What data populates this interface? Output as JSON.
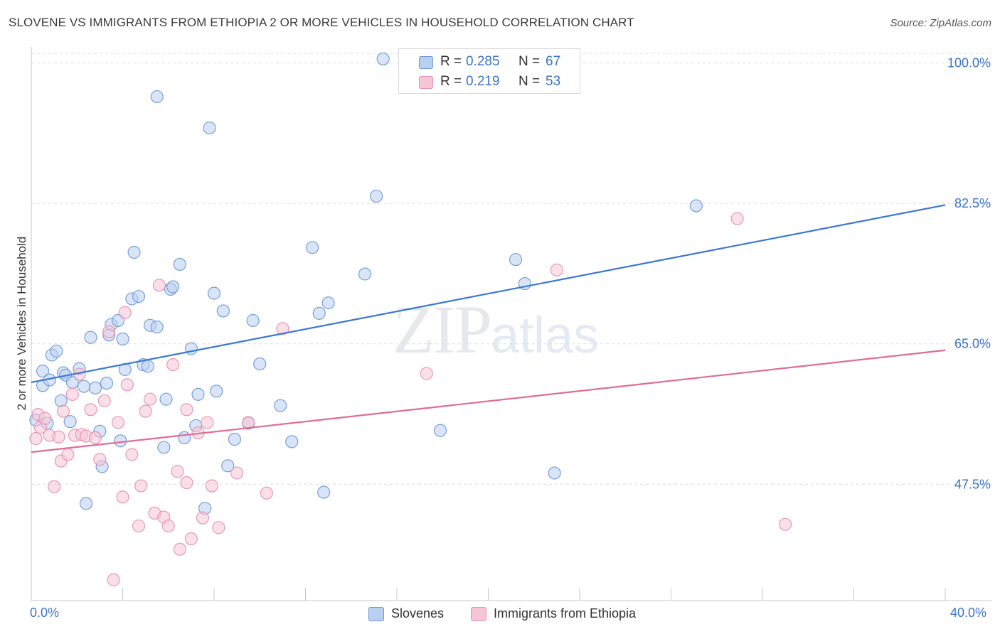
{
  "title": "SLOVENE VS IMMIGRANTS FROM ETHIOPIA 2 OR MORE VEHICLES IN HOUSEHOLD CORRELATION CHART",
  "source": "Source: ZipAtlas.com",
  "watermark": {
    "zip": "ZIP",
    "atlas": "atlas"
  },
  "colors": {
    "blue": "#3a78d1",
    "blue_fill": "#b9d0f1",
    "pink": "#e06b97",
    "pink_fill": "#f7c5d5",
    "tick_text": "#3b73c9"
  },
  "legend_top": [
    {
      "r_label": "R =",
      "r_value": "0.285",
      "n_label": "N =",
      "n_value": "67"
    },
    {
      "r_label": "R =",
      "r_value": "0.219",
      "n_label": "N =",
      "n_value": "53"
    }
  ],
  "legend_bottom": [
    "Slovenes",
    "Immigrants from Ethiopia"
  ],
  "chart_data": {
    "type": "scatter",
    "title": "SLOVENE VS IMMIGRANTS FROM ETHIOPIA 2 OR MORE VEHICLES IN HOUSEHOLD CORRELATION CHART",
    "xlabel": "",
    "ylabel": "2 or more Vehicles in Household",
    "xlim": [
      0,
      40
    ],
    "ylim": [
      33,
      102
    ],
    "x_tick_labels": [
      "0.0%",
      "40.0%"
    ],
    "y_ticks": [
      47.5,
      65.0,
      82.5,
      100.0
    ],
    "y_tick_labels": [
      "47.5%",
      "65.0%",
      "82.5%",
      "100.0%"
    ],
    "grid": true,
    "legend_placement": "top-center",
    "series": [
      {
        "name": "Slovenes",
        "color": "#3a78d1",
        "r": 0.285,
        "n": 67,
        "trend": {
          "x": [
            0,
            40
          ],
          "y": [
            60.2,
            82.3
          ]
        },
        "points": [
          [
            0.2,
            55.5
          ],
          [
            0.5,
            59.8
          ],
          [
            0.5,
            61.6
          ],
          [
            0.7,
            55.1
          ],
          [
            0.8,
            60.5
          ],
          [
            0.9,
            63.6
          ],
          [
            1.1,
            64.1
          ],
          [
            1.3,
            57.9
          ],
          [
            1.4,
            61.4
          ],
          [
            1.5,
            61.1
          ],
          [
            1.7,
            55.3
          ],
          [
            1.8,
            60.2
          ],
          [
            2.1,
            61.9
          ],
          [
            2.3,
            59.7
          ],
          [
            2.6,
            65.8
          ],
          [
            2.8,
            59.5
          ],
          [
            3.0,
            54.1
          ],
          [
            3.1,
            49.7
          ],
          [
            3.3,
            60.1
          ],
          [
            3.4,
            66.1
          ],
          [
            3.5,
            67.4
          ],
          [
            3.8,
            67.9
          ],
          [
            3.9,
            52.9
          ],
          [
            4.0,
            65.6
          ],
          [
            4.1,
            61.8
          ],
          [
            4.4,
            70.6
          ],
          [
            4.5,
            76.4
          ],
          [
            4.7,
            70.9
          ],
          [
            4.9,
            62.4
          ],
          [
            5.1,
            62.2
          ],
          [
            5.2,
            67.3
          ],
          [
            5.5,
            67.1
          ],
          [
            5.5,
            95.8
          ],
          [
            5.8,
            52.1
          ],
          [
            5.9,
            58.1
          ],
          [
            6.1,
            71.8
          ],
          [
            6.2,
            72.1
          ],
          [
            6.5,
            74.9
          ],
          [
            6.7,
            53.3
          ],
          [
            7.0,
            64.4
          ],
          [
            7.2,
            54.8
          ],
          [
            7.3,
            58.7
          ],
          [
            7.6,
            44.5
          ],
          [
            7.8,
            91.9
          ],
          [
            8.0,
            71.3
          ],
          [
            8.1,
            59.1
          ],
          [
            8.4,
            69.1
          ],
          [
            8.6,
            49.8
          ],
          [
            8.9,
            53.1
          ],
          [
            9.5,
            55.1
          ],
          [
            9.7,
            67.9
          ],
          [
            10.0,
            62.5
          ],
          [
            10.9,
            57.3
          ],
          [
            11.4,
            52.8
          ],
          [
            12.3,
            77.0
          ],
          [
            12.6,
            68.8
          ],
          [
            12.8,
            46.5
          ],
          [
            13.0,
            70.1
          ],
          [
            14.6,
            73.7
          ],
          [
            15.1,
            83.4
          ],
          [
            15.4,
            100.5
          ],
          [
            17.9,
            54.2
          ],
          [
            21.2,
            75.5
          ],
          [
            21.6,
            72.5
          ],
          [
            22.9,
            48.9
          ],
          [
            29.1,
            82.2
          ],
          [
            2.4,
            45.1
          ]
        ]
      },
      {
        "name": "Immigrants from Ethiopia",
        "color": "#e06b97",
        "r": 0.219,
        "n": 53,
        "trend": {
          "x": [
            0,
            40
          ],
          "y": [
            51.5,
            64.2
          ]
        },
        "points": [
          [
            0.2,
            53.2
          ],
          [
            0.3,
            56.2
          ],
          [
            0.4,
            54.6
          ],
          [
            0.6,
            55.7
          ],
          [
            0.8,
            53.6
          ],
          [
            1.0,
            47.2
          ],
          [
            1.2,
            53.4
          ],
          [
            1.3,
            50.4
          ],
          [
            1.4,
            56.6
          ],
          [
            1.6,
            51.2
          ],
          [
            1.8,
            58.7
          ],
          [
            1.9,
            53.6
          ],
          [
            2.1,
            61.2
          ],
          [
            2.2,
            53.7
          ],
          [
            2.4,
            53.5
          ],
          [
            2.6,
            56.8
          ],
          [
            2.8,
            53.3
          ],
          [
            3.0,
            50.6
          ],
          [
            3.2,
            57.9
          ],
          [
            3.4,
            66.5
          ],
          [
            3.6,
            35.6
          ],
          [
            3.8,
            55.2
          ],
          [
            4.0,
            45.9
          ],
          [
            4.1,
            68.9
          ],
          [
            4.2,
            59.9
          ],
          [
            4.4,
            51.2
          ],
          [
            4.7,
            42.3
          ],
          [
            4.8,
            47.3
          ],
          [
            5.0,
            56.6
          ],
          [
            5.2,
            58.1
          ],
          [
            5.4,
            43.9
          ],
          [
            5.6,
            72.3
          ],
          [
            5.8,
            43.4
          ],
          [
            6.0,
            42.3
          ],
          [
            6.2,
            62.4
          ],
          [
            6.4,
            49.1
          ],
          [
            6.5,
            39.4
          ],
          [
            6.8,
            47.7
          ],
          [
            7.0,
            40.7
          ],
          [
            7.3,
            53.9
          ],
          [
            7.5,
            43.3
          ],
          [
            7.7,
            55.2
          ],
          [
            8.2,
            42.1
          ],
          [
            9.0,
            48.9
          ],
          [
            9.5,
            55.2
          ],
          [
            10.3,
            46.4
          ],
          [
            11.0,
            66.9
          ],
          [
            17.3,
            61.3
          ],
          [
            23.0,
            74.2
          ],
          [
            30.9,
            80.6
          ],
          [
            33.0,
            42.5
          ],
          [
            6.8,
            56.8
          ],
          [
            7.9,
            47.3
          ]
        ]
      }
    ]
  }
}
